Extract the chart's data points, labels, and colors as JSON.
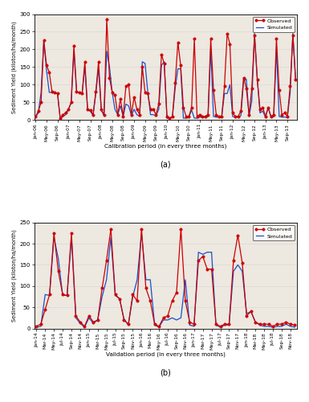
{
  "calib_obs": [
    10,
    25,
    225,
    135,
    80,
    75,
    5,
    30,
    210,
    80,
    75,
    165,
    30,
    15,
    285,
    120,
    70,
    15,
    60,
    10,
    95,
    100,
    15,
    65,
    30,
    15,
    150,
    75,
    30,
    30,
    15,
    45,
    185,
    160,
    10,
    5,
    10,
    105,
    220,
    155,
    35,
    10,
    10,
    35,
    230,
    10,
    15,
    10,
    10,
    15,
    230,
    85,
    15,
    10,
    10,
    95,
    245,
    215,
    20,
    10,
    10,
    25,
    120,
    90,
    15,
    90,
    240,
    115,
    30,
    35,
    10,
    35,
    5,
    10,
    10,
    15,
    10,
    10,
    5,
    10,
    10,
    15,
    10,
    8,
    10,
    90,
    110,
    115,
    25,
    8,
    90,
    240,
    115,
    30,
    35,
    10
  ],
  "calib_sim": [
    8,
    20,
    225,
    140,
    78,
    75,
    3,
    30,
    195,
    78,
    75,
    150,
    30,
    12,
    195,
    150,
    30,
    15,
    40,
    10,
    45,
    40,
    12,
    30,
    15,
    10,
    165,
    160,
    15,
    15,
    8,
    30,
    155,
    165,
    5,
    5,
    8,
    90,
    145,
    145,
    5,
    5,
    8,
    28,
    5,
    5,
    8,
    8,
    8,
    10,
    200,
    10,
    8,
    8,
    8,
    75,
    75,
    100,
    10,
    8,
    8,
    12,
    110,
    115,
    10,
    55,
    245,
    115,
    20,
    25,
    8,
    35,
    3,
    5,
    5,
    10,
    5,
    5,
    3,
    5,
    5,
    10,
    5,
    3,
    8,
    75,
    115,
    115,
    10,
    3,
    75,
    245,
    115,
    20,
    25,
    8
  ],
  "calib_xtick_labels": [
    "Jan-06",
    "May-06",
    "Sep-06",
    "Jan-07",
    "May-07",
    "Sep-07",
    "Jan-08",
    "May-08",
    "Sep-08",
    "Jan-09",
    "May-09",
    "Sep-09",
    "Jan-10",
    "May-10",
    "Sep-10",
    "Jan-11",
    "May-11",
    "Sep-11",
    "Jan-12",
    "May-12",
    "Sep-12",
    "Jan-13",
    "May-13",
    "Sep-13"
  ],
  "calib_tick_step": 4,
  "valid_obs": [
    5,
    10,
    45,
    80,
    225,
    135,
    80,
    80,
    225,
    30,
    15,
    5,
    30,
    15,
    20,
    95,
    160,
    235,
    80,
    70,
    20,
    10,
    80,
    65,
    235,
    95,
    65,
    10,
    5,
    25,
    30,
    65,
    85,
    235,
    65,
    15,
    10,
    160,
    170,
    140,
    140,
    10,
    5,
    10,
    10,
    160,
    220,
    155,
    30,
    40,
    15,
    10,
    10,
    10,
    5,
    10,
    10,
    15,
    10,
    8
  ],
  "valid_sim": [
    3,
    5,
    80,
    78,
    215,
    165,
    78,
    78,
    215,
    25,
    12,
    3,
    25,
    12,
    20,
    75,
    115,
    215,
    78,
    70,
    22,
    8,
    75,
    115,
    225,
    115,
    115,
    8,
    3,
    20,
    20,
    25,
    20,
    25,
    115,
    8,
    5,
    180,
    175,
    180,
    180,
    8,
    3,
    8,
    8,
    135,
    150,
    135,
    35,
    40,
    15,
    8,
    5,
    5,
    3,
    5,
    5,
    10,
    5,
    3
  ],
  "valid_xtick_labels": [
    "Jan-14",
    "Mar-14",
    "May-14",
    "Jul-14",
    "Sep-14",
    "Nov-14",
    "Jan-15",
    "Mar-15",
    "May-15",
    "Jul-15",
    "Sep-15",
    "Nov-15",
    "Jan-16",
    "Mar-16",
    "May-16",
    "Jul-16",
    "Sep-16",
    "Nov-16",
    "Jan-17",
    "Mar-17",
    "May-17",
    "Jul-17",
    "Sep-17",
    "Nov-17",
    "Jan-18",
    "Mar-18",
    "May-18",
    "Jul-18",
    "Sep-18",
    "Nov-18"
  ],
  "valid_tick_step": 2,
  "obs_color": "#cc0000",
  "sim_color": "#1a4fcc",
  "marker": "o",
  "markersize": 2.5,
  "linewidth": 0.9,
  "bg_color": "#ede8e0",
  "subplot_label_a": "(a)",
  "subplot_label_b": "(b)",
  "calib_xlabel": "Calibration period (in every three months)",
  "valid_xlabel": "Validation period (in every three months)",
  "ylabel": "Sediment Yield (kiloton/ha/month)",
  "calib_ylim": [
    0,
    300
  ],
  "valid_ylim": [
    0,
    250
  ],
  "calib_yticks": [
    0,
    50,
    100,
    150,
    200,
    250,
    300
  ],
  "valid_yticks": [
    0,
    50,
    100,
    150,
    200,
    250
  ],
  "legend_observed": "Observed",
  "legend_simulated": "Simulated"
}
